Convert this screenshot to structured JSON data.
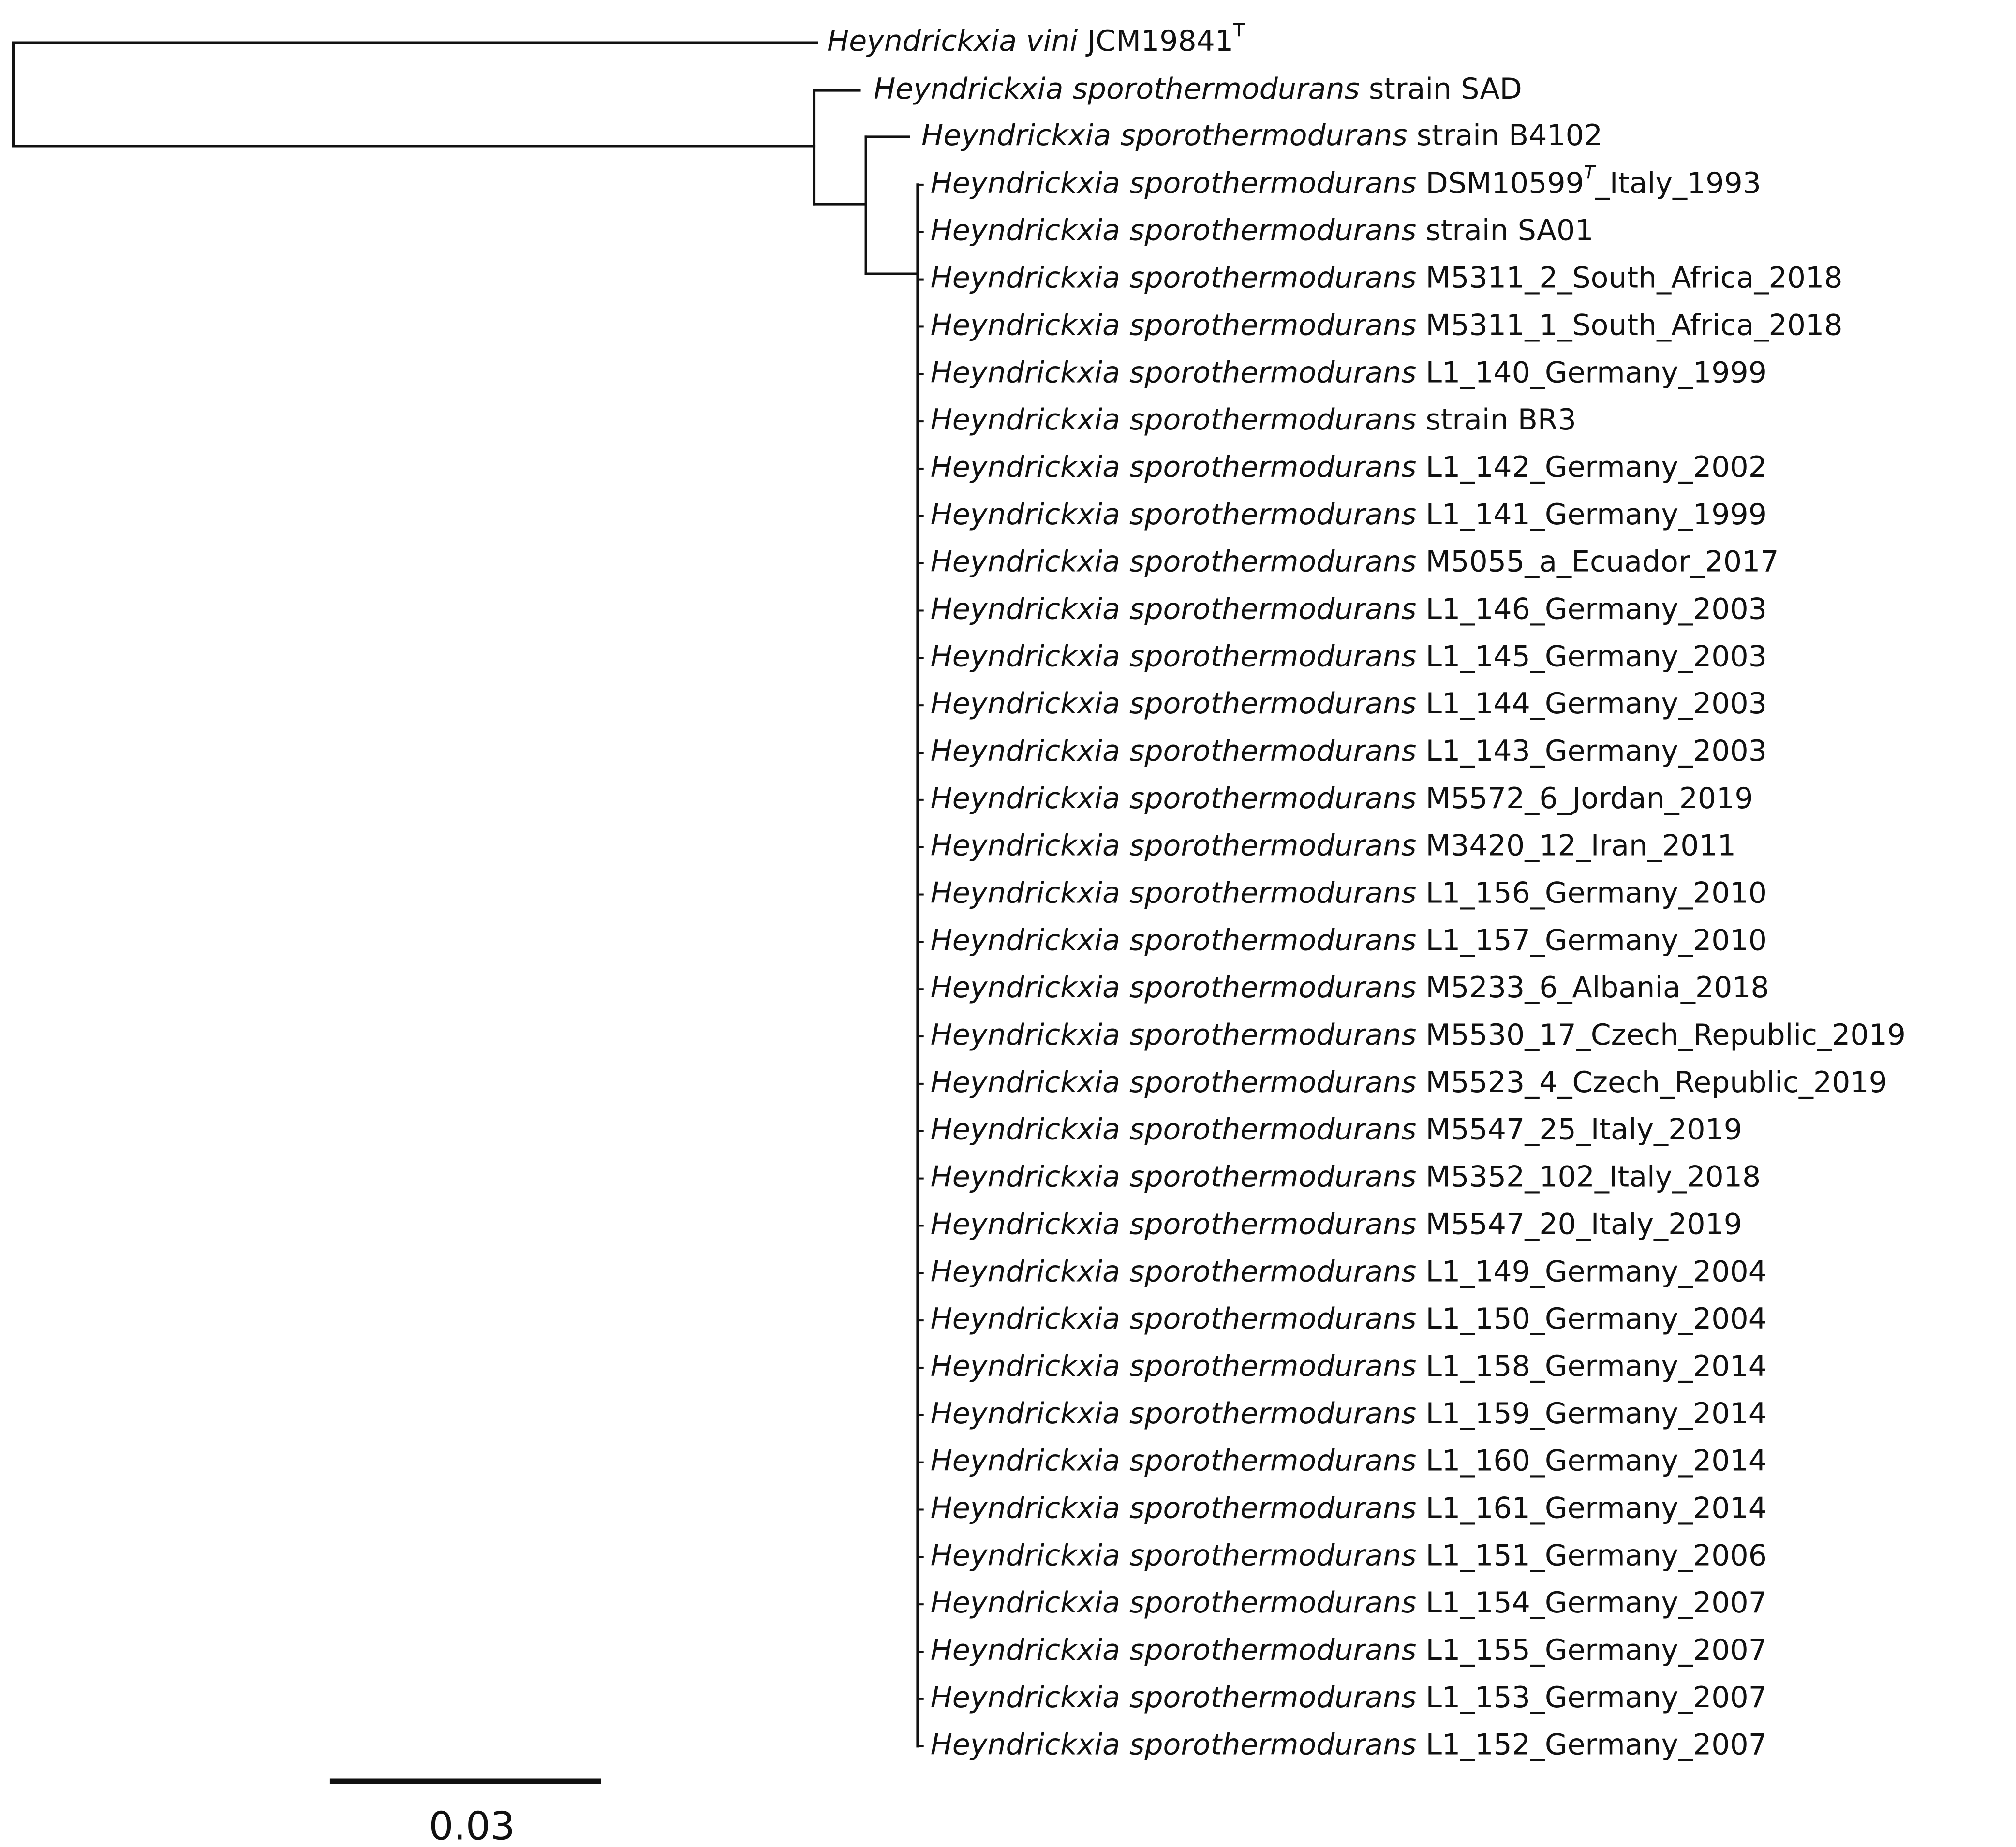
{
  "tree": {
    "leaves": [
      {
        "species": "Heyndrickxia vini",
        "strain": "JCM19841",
        "superscript": "T"
      },
      {
        "species": "Heyndrickxia sporothermodurans",
        "strain": "strain SAD"
      },
      {
        "species": "Heyndrickxia sporothermodurans",
        "strain": "strain B4102"
      },
      {
        "species": "Heyndrickxia sporothermodurans",
        "strain": "DSM10599",
        "superscript": "T",
        "suffix": "_Italy_1993"
      },
      {
        "species": "Heyndrickxia sporothermodurans",
        "strain": "strain SA01"
      },
      {
        "species": "Heyndrickxia sporothermodurans",
        "strain": "M5311_2_South_Africa_2018"
      },
      {
        "species": "Heyndrickxia sporothermodurans",
        "strain": "M5311_1_South_Africa_2018"
      },
      {
        "species": "Heyndrickxia sporothermodurans",
        "strain": "L1_140_Germany_1999"
      },
      {
        "species": "Heyndrickxia sporothermodurans",
        "strain": "strain BR3"
      },
      {
        "species": "Heyndrickxia sporothermodurans",
        "strain": "L1_142_Germany_2002"
      },
      {
        "species": "Heyndrickxia sporothermodurans",
        "strain": "L1_141_Germany_1999"
      },
      {
        "species": "Heyndrickxia sporothermodurans",
        "strain": "M5055_a_Ecuador_2017"
      },
      {
        "species": "Heyndrickxia sporothermodurans",
        "strain": "L1_146_Germany_2003"
      },
      {
        "species": "Heyndrickxia sporothermodurans",
        "strain": "L1_145_Germany_2003"
      },
      {
        "species": "Heyndrickxia sporothermodurans",
        "strain": "L1_144_Germany_2003"
      },
      {
        "species": "Heyndrickxia sporothermodurans",
        "strain": "L1_143_Germany_2003"
      },
      {
        "species": "Heyndrickxia sporothermodurans",
        "strain": "M5572_6_Jordan_2019"
      },
      {
        "species": "Heyndrickxia sporothermodurans",
        "strain": "M3420_12_Iran_2011"
      },
      {
        "species": "Heyndrickxia sporothermodurans",
        "strain": "L1_156_Germany_2010"
      },
      {
        "species": "Heyndrickxia sporothermodurans",
        "strain": "L1_157_Germany_2010"
      },
      {
        "species": "Heyndrickxia sporothermodurans",
        "strain": "M5233_6_Albania_2018"
      },
      {
        "species": "Heyndrickxia sporothermodurans",
        "strain": "M5530_17_Czech_Republic_2019"
      },
      {
        "species": "Heyndrickxia sporothermodurans",
        "strain": "M5523_4_Czech_Republic_2019"
      },
      {
        "species": "Heyndrickxia sporothermodurans",
        "strain": "M5547_25_Italy_2019"
      },
      {
        "species": "Heyndrickxia sporothermodurans",
        "strain": "M5352_102_Italy_2018"
      },
      {
        "species": "Heyndrickxia sporothermodurans",
        "strain": "M5547_20_Italy_2019"
      },
      {
        "species": "Heyndrickxia sporothermodurans",
        "strain": "L1_149_Germany_2004"
      },
      {
        "species": "Heyndrickxia sporothermodurans",
        "strain": "L1_150_Germany_2004"
      },
      {
        "species": "Heyndrickxia sporothermodurans",
        "strain": "L1_158_Germany_2014"
      },
      {
        "species": "Heyndrickxia sporothermodurans",
        "strain": "L1_159_Germany_2014"
      },
      {
        "species": "Heyndrickxia sporothermodurans",
        "strain": "L1_160_Germany_2014"
      },
      {
        "species": "Heyndrickxia sporothermodurans",
        "strain": "L1_161_Germany_2014"
      },
      {
        "species": "Heyndrickxia sporothermodurans",
        "strain": "L1_151_Germany_2006"
      },
      {
        "species": "Heyndrickxia sporothermodurans",
        "strain": "L1_154_Germany_2007"
      },
      {
        "species": "Heyndrickxia sporothermodurans",
        "strain": "L1_155_Germany_2007"
      },
      {
        "species": "Heyndrickxia sporothermodurans",
        "strain": "L1_153_Germany_2007"
      },
      {
        "species": "Heyndrickxia sporothermodurans",
        "strain": "L1_152_Germany_2007"
      }
    ],
    "scale_bar": {
      "label": "0.03"
    }
  }
}
